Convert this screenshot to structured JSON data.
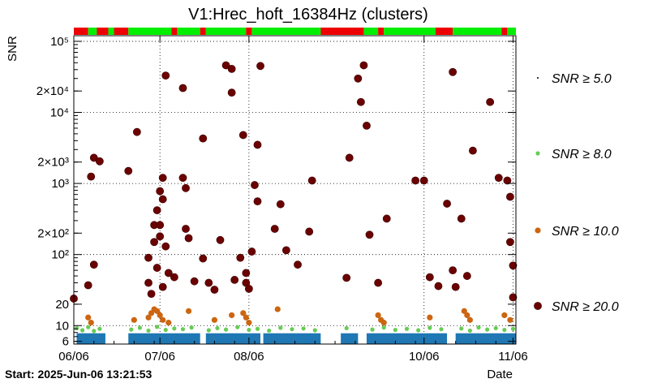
{
  "chart_data": {
    "type": "scatter",
    "title": "V1:Hrec_hoft_16384Hz (clusters)",
    "xlabel": "Date",
    "ylabel": "SNR",
    "y_scale": "log",
    "ylim": [
      5.5,
      120000
    ],
    "xlim": [
      "2025-06-06",
      "2025-11-07"
    ],
    "x_ticks": [
      {
        "date": "2025-06-06",
        "label": "06/06"
      },
      {
        "date": "2025-07-06",
        "label": "07/06"
      },
      {
        "date": "2025-08-06",
        "label": "08/06"
      },
      {
        "date": "2025-10-06",
        "label": "10/06"
      },
      {
        "date": "2025-11-06",
        "label": "11/06"
      }
    ],
    "y_ticks": [
      {
        "value": 6,
        "label": "6"
      },
      {
        "value": 10,
        "label": "10"
      },
      {
        "value": 20,
        "label": "20"
      },
      {
        "value": 100,
        "label": "10²"
      },
      {
        "value": 200,
        "label": "2×10²"
      },
      {
        "value": 1000,
        "label": "10³"
      },
      {
        "value": 2000,
        "label": "2×10³"
      },
      {
        "value": 10000,
        "label": "10⁴"
      },
      {
        "value": 20000,
        "label": "2×10⁴"
      },
      {
        "value": 100000,
        "label": "10⁵"
      }
    ],
    "grid": true,
    "legend_position": "right",
    "start_label": "Start: 2025-Jun-06 13:21:53",
    "series": [
      {
        "name": "SNR ≥ 5.0",
        "color": "#1f77b4",
        "bands": [
          {
            "start": "2025-06-07",
            "end": "2025-06-17"
          },
          {
            "start": "2025-06-25",
            "end": "2025-07-20"
          },
          {
            "start": "2025-07-22",
            "end": "2025-08-10"
          },
          {
            "start": "2025-08-11",
            "end": "2025-08-31"
          },
          {
            "start": "2025-09-07",
            "end": "2025-09-13"
          },
          {
            "start": "2025-09-16",
            "end": "2025-10-14"
          },
          {
            "start": "2025-10-17",
            "end": "2025-11-07"
          }
        ],
        "ymax": 7.8
      },
      {
        "name": "SNR ≥ 8.0",
        "color": "#66cc55",
        "points": [
          {
            "x": "2025-06-07",
            "y": 9.2
          },
          {
            "x": "2025-06-09",
            "y": 8.6
          },
          {
            "x": "2025-06-11",
            "y": 9.5
          },
          {
            "x": "2025-06-13",
            "y": 8.4
          },
          {
            "x": "2025-06-15",
            "y": 9.0
          },
          {
            "x": "2025-06-26",
            "y": 8.8
          },
          {
            "x": "2025-06-29",
            "y": 9.3
          },
          {
            "x": "2025-07-02",
            "y": 8.5
          },
          {
            "x": "2025-07-05",
            "y": 9.6
          },
          {
            "x": "2025-07-08",
            "y": 8.7
          },
          {
            "x": "2025-07-11",
            "y": 9.1
          },
          {
            "x": "2025-07-14",
            "y": 8.9
          },
          {
            "x": "2025-07-17",
            "y": 9.4
          },
          {
            "x": "2025-07-23",
            "y": 8.6
          },
          {
            "x": "2025-07-26",
            "y": 9.2
          },
          {
            "x": "2025-07-29",
            "y": 8.8
          },
          {
            "x": "2025-08-02",
            "y": 9.5
          },
          {
            "x": "2025-08-06",
            "y": 8.7
          },
          {
            "x": "2025-08-09",
            "y": 9.0
          },
          {
            "x": "2025-08-13",
            "y": 8.5
          },
          {
            "x": "2025-08-17",
            "y": 9.3
          },
          {
            "x": "2025-08-21",
            "y": 8.9
          },
          {
            "x": "2025-08-25",
            "y": 9.1
          },
          {
            "x": "2025-08-29",
            "y": 8.6
          },
          {
            "x": "2025-09-09",
            "y": 9.2
          },
          {
            "x": "2025-09-18",
            "y": 8.8
          },
          {
            "x": "2025-09-22",
            "y": 9.4
          },
          {
            "x": "2025-09-26",
            "y": 8.7
          },
          {
            "x": "2025-09-30",
            "y": 9.0
          },
          {
            "x": "2025-10-04",
            "y": 8.6
          },
          {
            "x": "2025-10-08",
            "y": 9.3
          },
          {
            "x": "2025-10-12",
            "y": 8.9
          },
          {
            "x": "2025-10-19",
            "y": 9.1
          },
          {
            "x": "2025-10-22",
            "y": 8.5
          },
          {
            "x": "2025-10-25",
            "y": 9.4
          },
          {
            "x": "2025-10-28",
            "y": 8.8
          },
          {
            "x": "2025-10-31",
            "y": 9.2
          },
          {
            "x": "2025-11-03",
            "y": 8.7
          },
          {
            "x": "2025-11-06",
            "y": 9.0
          }
        ]
      },
      {
        "name": "SNR ≥ 10.0",
        "color": "#cc6611",
        "points": [
          {
            "x": "2025-06-11",
            "y": 13
          },
          {
            "x": "2025-06-12",
            "y": 11
          },
          {
            "x": "2025-06-27",
            "y": 12
          },
          {
            "x": "2025-07-02",
            "y": 13
          },
          {
            "x": "2025-07-03",
            "y": 15
          },
          {
            "x": "2025-07-04",
            "y": 17
          },
          {
            "x": "2025-07-05",
            "y": 16
          },
          {
            "x": "2025-07-06",
            "y": 14
          },
          {
            "x": "2025-07-07",
            "y": 12
          },
          {
            "x": "2025-07-09",
            "y": 11
          },
          {
            "x": "2025-07-16",
            "y": 16
          },
          {
            "x": "2025-07-25",
            "y": 12
          },
          {
            "x": "2025-07-31",
            "y": 14
          },
          {
            "x": "2025-08-04",
            "y": 15
          },
          {
            "x": "2025-08-05",
            "y": 13
          },
          {
            "x": "2025-08-06",
            "y": 11
          },
          {
            "x": "2025-08-16",
            "y": 17
          },
          {
            "x": "2025-09-20",
            "y": 14
          },
          {
            "x": "2025-09-21",
            "y": 12
          },
          {
            "x": "2025-09-22",
            "y": 11
          },
          {
            "x": "2025-10-08",
            "y": 13
          },
          {
            "x": "2025-10-20",
            "y": 16
          },
          {
            "x": "2025-10-21",
            "y": 14
          },
          {
            "x": "2025-10-22",
            "y": 12
          },
          {
            "x": "2025-11-03",
            "y": 14
          },
          {
            "x": "2025-11-05",
            "y": 12
          }
        ]
      },
      {
        "name": "SNR ≥ 20.0",
        "color": "#6b0000",
        "points": [
          {
            "x": "2025-06-06",
            "y": 24
          },
          {
            "x": "2025-06-11",
            "y": 37
          },
          {
            "x": "2025-06-12",
            "y": 1250
          },
          {
            "x": "2025-06-13",
            "y": 2300
          },
          {
            "x": "2025-06-13",
            "y": 72
          },
          {
            "x": "2025-06-15",
            "y": 2050
          },
          {
            "x": "2025-06-25",
            "y": 1500
          },
          {
            "x": "2025-06-28",
            "y": 5300
          },
          {
            "x": "2025-07-02",
            "y": 90
          },
          {
            "x": "2025-07-02",
            "y": 40
          },
          {
            "x": "2025-07-03",
            "y": 28
          },
          {
            "x": "2025-07-04",
            "y": 260
          },
          {
            "x": "2025-07-04",
            "y": 150
          },
          {
            "x": "2025-07-05",
            "y": 65
          },
          {
            "x": "2025-07-05",
            "y": 420
          },
          {
            "x": "2025-07-06",
            "y": 780
          },
          {
            "x": "2025-07-06",
            "y": 260
          },
          {
            "x": "2025-07-06",
            "y": 180
          },
          {
            "x": "2025-07-07",
            "y": 1200
          },
          {
            "x": "2025-07-07",
            "y": 600
          },
          {
            "x": "2025-07-07",
            "y": 35
          },
          {
            "x": "2025-07-08",
            "y": 33000
          },
          {
            "x": "2025-07-08",
            "y": 130
          },
          {
            "x": "2025-07-09",
            "y": 55
          },
          {
            "x": "2025-07-11",
            "y": 48
          },
          {
            "x": "2025-07-14",
            "y": 22000
          },
          {
            "x": "2025-07-14",
            "y": 1200
          },
          {
            "x": "2025-07-15",
            "y": 860
          },
          {
            "x": "2025-07-15",
            "y": 230
          },
          {
            "x": "2025-07-16",
            "y": 170
          },
          {
            "x": "2025-07-18",
            "y": 42
          },
          {
            "x": "2025-07-21",
            "y": 4300
          },
          {
            "x": "2025-07-21",
            "y": 88
          },
          {
            "x": "2025-07-23",
            "y": 40
          },
          {
            "x": "2025-07-25",
            "y": 32
          },
          {
            "x": "2025-07-27",
            "y": 160
          },
          {
            "x": "2025-07-29",
            "y": 46000
          },
          {
            "x": "2025-07-31",
            "y": 41000
          },
          {
            "x": "2025-07-31",
            "y": 19000
          },
          {
            "x": "2025-08-01",
            "y": 44
          },
          {
            "x": "2025-08-03",
            "y": 90
          },
          {
            "x": "2025-08-04",
            "y": 4800
          },
          {
            "x": "2025-08-05",
            "y": 55
          },
          {
            "x": "2025-08-05",
            "y": 40
          },
          {
            "x": "2025-08-06",
            "y": 33
          },
          {
            "x": "2025-08-07",
            "y": 110
          },
          {
            "x": "2025-08-08",
            "y": 950
          },
          {
            "x": "2025-08-09",
            "y": 3500
          },
          {
            "x": "2025-08-09",
            "y": 560
          },
          {
            "x": "2025-08-10",
            "y": 45000
          },
          {
            "x": "2025-08-15",
            "y": 230
          },
          {
            "x": "2025-08-17",
            "y": 510
          },
          {
            "x": "2025-08-19",
            "y": 115
          },
          {
            "x": "2025-08-23",
            "y": 72
          },
          {
            "x": "2025-08-27",
            "y": 210
          },
          {
            "x": "2025-08-28",
            "y": 1100
          },
          {
            "x": "2025-09-09",
            "y": 47
          },
          {
            "x": "2025-09-10",
            "y": 2300
          },
          {
            "x": "2025-09-13",
            "y": 30000
          },
          {
            "x": "2025-09-14",
            "y": 14000
          },
          {
            "x": "2025-09-15",
            "y": 46000
          },
          {
            "x": "2025-09-16",
            "y": 6500
          },
          {
            "x": "2025-09-17",
            "y": 190
          },
          {
            "x": "2025-09-20",
            "y": 40
          },
          {
            "x": "2025-09-23",
            "y": 320
          },
          {
            "x": "2025-10-03",
            "y": 1100
          },
          {
            "x": "2025-10-06",
            "y": 1100
          },
          {
            "x": "2025-10-08",
            "y": 48
          },
          {
            "x": "2025-10-11",
            "y": 36
          },
          {
            "x": "2025-10-14",
            "y": 520
          },
          {
            "x": "2025-10-16",
            "y": 37000
          },
          {
            "x": "2025-10-16",
            "y": 60
          },
          {
            "x": "2025-10-17",
            "y": 35
          },
          {
            "x": "2025-10-19",
            "y": 320
          },
          {
            "x": "2025-10-21",
            "y": 50
          },
          {
            "x": "2025-10-23",
            "y": 2900
          },
          {
            "x": "2025-10-29",
            "y": 14000
          },
          {
            "x": "2025-11-01",
            "y": 1200
          },
          {
            "x": "2025-11-04",
            "y": 1100
          },
          {
            "x": "2025-11-05",
            "y": 650
          },
          {
            "x": "2025-11-05",
            "y": 150
          },
          {
            "x": "2025-11-06",
            "y": 70
          },
          {
            "x": "2025-11-06",
            "y": 25
          }
        ]
      }
    ],
    "segment_bar": [
      {
        "start": "2025-06-06",
        "end": "2025-06-11",
        "state": "off"
      },
      {
        "start": "2025-06-11",
        "end": "2025-06-14",
        "state": "on"
      },
      {
        "start": "2025-06-14",
        "end": "2025-06-18",
        "state": "off"
      },
      {
        "start": "2025-06-18",
        "end": "2025-06-20",
        "state": "on"
      },
      {
        "start": "2025-06-20",
        "end": "2025-06-25",
        "state": "off"
      },
      {
        "start": "2025-06-25",
        "end": "2025-07-10",
        "state": "on"
      },
      {
        "start": "2025-07-10",
        "end": "2025-07-12",
        "state": "off"
      },
      {
        "start": "2025-07-12",
        "end": "2025-07-20",
        "state": "on"
      },
      {
        "start": "2025-07-20",
        "end": "2025-07-22",
        "state": "off"
      },
      {
        "start": "2025-07-22",
        "end": "2025-08-05",
        "state": "on"
      },
      {
        "start": "2025-08-05",
        "end": "2025-08-07",
        "state": "off"
      },
      {
        "start": "2025-08-07",
        "end": "2025-08-31",
        "state": "on"
      },
      {
        "start": "2025-08-31",
        "end": "2025-09-15",
        "state": "off"
      },
      {
        "start": "2025-09-15",
        "end": "2025-09-20",
        "state": "on"
      },
      {
        "start": "2025-09-20",
        "end": "2025-09-22",
        "state": "off"
      },
      {
        "start": "2025-09-22",
        "end": "2025-10-10",
        "state": "on"
      },
      {
        "start": "2025-10-10",
        "end": "2025-10-16",
        "state": "off"
      },
      {
        "start": "2025-10-16",
        "end": "2025-11-02",
        "state": "on"
      },
      {
        "start": "2025-11-02",
        "end": "2025-11-04",
        "state": "off"
      },
      {
        "start": "2025-11-04",
        "end": "2025-11-07",
        "state": "on"
      }
    ],
    "segment_colors": {
      "on": "#00ee00",
      "off": "#ee0000"
    }
  }
}
